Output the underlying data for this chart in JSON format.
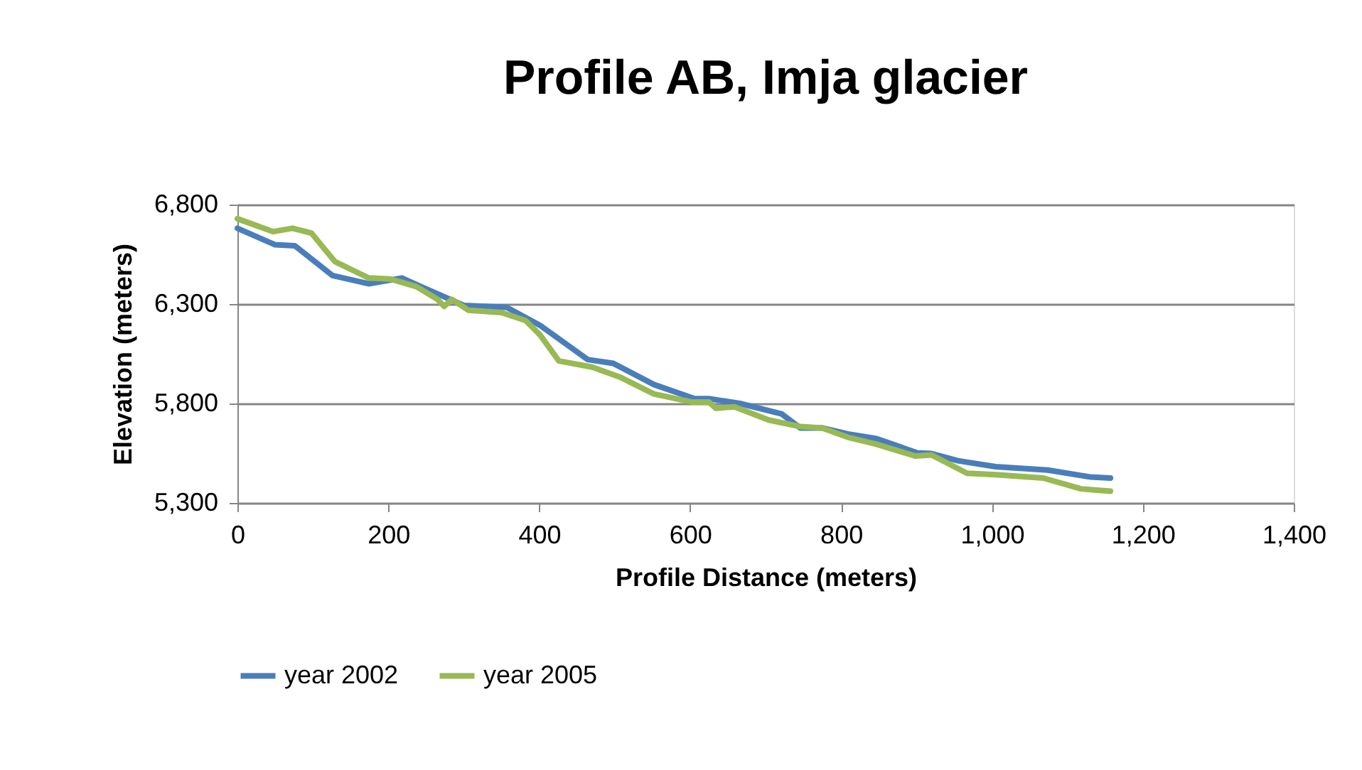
{
  "chart_data": {
    "type": "line",
    "title": "Profile AB, Imja glacier",
    "xlabel": "Profile Distance (meters)",
    "ylabel": "Elevation (meters)",
    "xlim": [
      0,
      1400
    ],
    "xticks": [
      {
        "value": 0,
        "label": "0"
      },
      {
        "value": 200,
        "label": "200"
      },
      {
        "value": 400,
        "label": "400"
      },
      {
        "value": 600,
        "label": "600"
      },
      {
        "value": 800,
        "label": "800"
      },
      {
        "value": 1000,
        "label": "1,000"
      },
      {
        "value": 1200,
        "label": "1,200"
      },
      {
        "value": 1400,
        "label": "1,400"
      }
    ],
    "ylim": [
      5300,
      6800
    ],
    "yticks": [
      {
        "value": 5300,
        "label": "5,300"
      },
      {
        "value": 5800,
        "label": "5,800"
      },
      {
        "value": 6300,
        "label": "6,300"
      },
      {
        "value": 6800,
        "label": "6,800"
      }
    ],
    "grid": "y",
    "legend": "bottom",
    "marker": "none",
    "line_style": "solid",
    "series": [
      {
        "name": "year 2002",
        "color": "#4a7ebb",
        "x": [
          0,
          50,
          76,
          126,
          174,
          218,
          243,
          300,
          357,
          401,
          464,
          498,
          552,
          606,
          625,
          666,
          721,
          746,
          775,
          809,
          847,
          901,
          920,
          955,
          1005,
          1074,
          1131,
          1157
        ],
        "values": [
          6681,
          6598,
          6593,
          6443,
          6402,
          6431,
          6388,
          6293,
          6283,
          6193,
          6021,
          6002,
          5895,
          5824,
          5824,
          5800,
          5748,
          5677,
          5677,
          5647,
          5623,
          5552,
          5548,
          5512,
          5482,
          5465,
          5430,
          5425
        ]
      },
      {
        "name": "year 2005",
        "color": "#98b954",
        "x": [
          0,
          47,
          73,
          98,
          129,
          174,
          202,
          237,
          265,
          274,
          284,
          306,
          350,
          382,
          401,
          426,
          470,
          508,
          552,
          603,
          625,
          634,
          659,
          704,
          746,
          775,
          809,
          847,
          898,
          920,
          967,
          1005,
          1068,
          1118,
          1157
        ],
        "values": [
          6729,
          6664,
          6681,
          6657,
          6514,
          6431,
          6426,
          6388,
          6324,
          6288,
          6324,
          6269,
          6257,
          6217,
          6145,
          6014,
          5983,
          5931,
          5848,
          5807,
          5807,
          5776,
          5783,
          5717,
          5684,
          5677,
          5630,
          5595,
          5536,
          5541,
          5449,
          5442,
          5425,
          5371,
          5359
        ]
      }
    ]
  }
}
